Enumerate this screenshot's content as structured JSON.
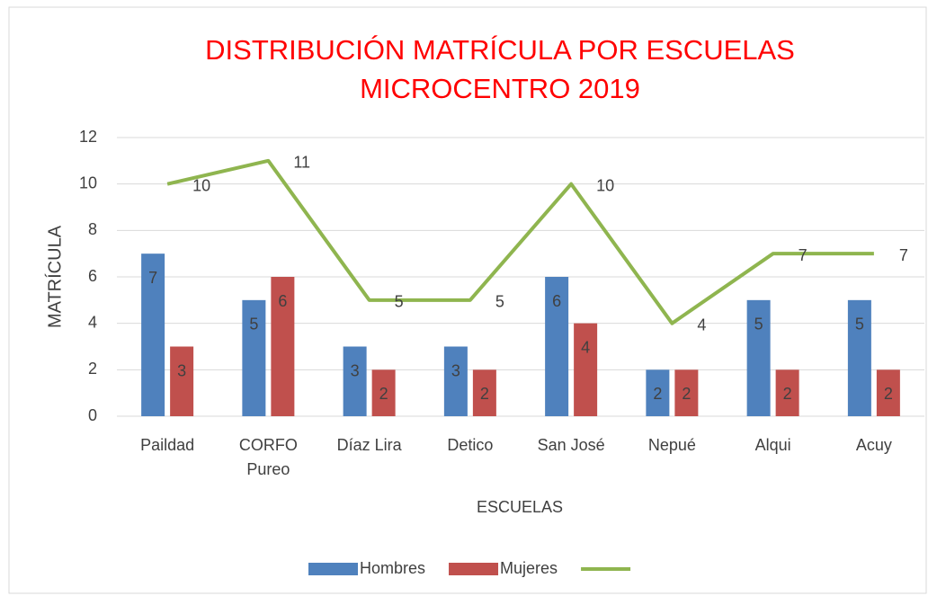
{
  "chart_data": {
    "type": "bar_line",
    "title": [
      "DISTRIBUCIÓN MATRÍCULA POR ESCUELAS",
      "MICROCENTRO 2019"
    ],
    "title_color": "#ff0000",
    "x_label": "ESCUELAS",
    "y_label": "MATRÍCULA",
    "categories": [
      "Paildad",
      "CORFO Pureo",
      "Díaz Lira",
      "Detico",
      "San José",
      "Nepué",
      "Alqui",
      "Acuy"
    ],
    "series": [
      {
        "name": "Hombres",
        "type": "bar",
        "color": "#4f81bd",
        "values": [
          7,
          5,
          3,
          3,
          6,
          2,
          5,
          5
        ]
      },
      {
        "name": "Mujeres",
        "type": "bar",
        "color": "#c0504d",
        "values": [
          3,
          6,
          2,
          2,
          4,
          2,
          2,
          2
        ]
      },
      {
        "type": "line",
        "color": "#8fb54f",
        "values": [
          10,
          11,
          5,
          5,
          10,
          4,
          7,
          7
        ]
      }
    ],
    "ylim": [
      0,
      12
    ],
    "yticks": [
      0,
      2,
      4,
      6,
      8,
      10,
      12
    ],
    "grid": true,
    "legend": "bottom"
  }
}
